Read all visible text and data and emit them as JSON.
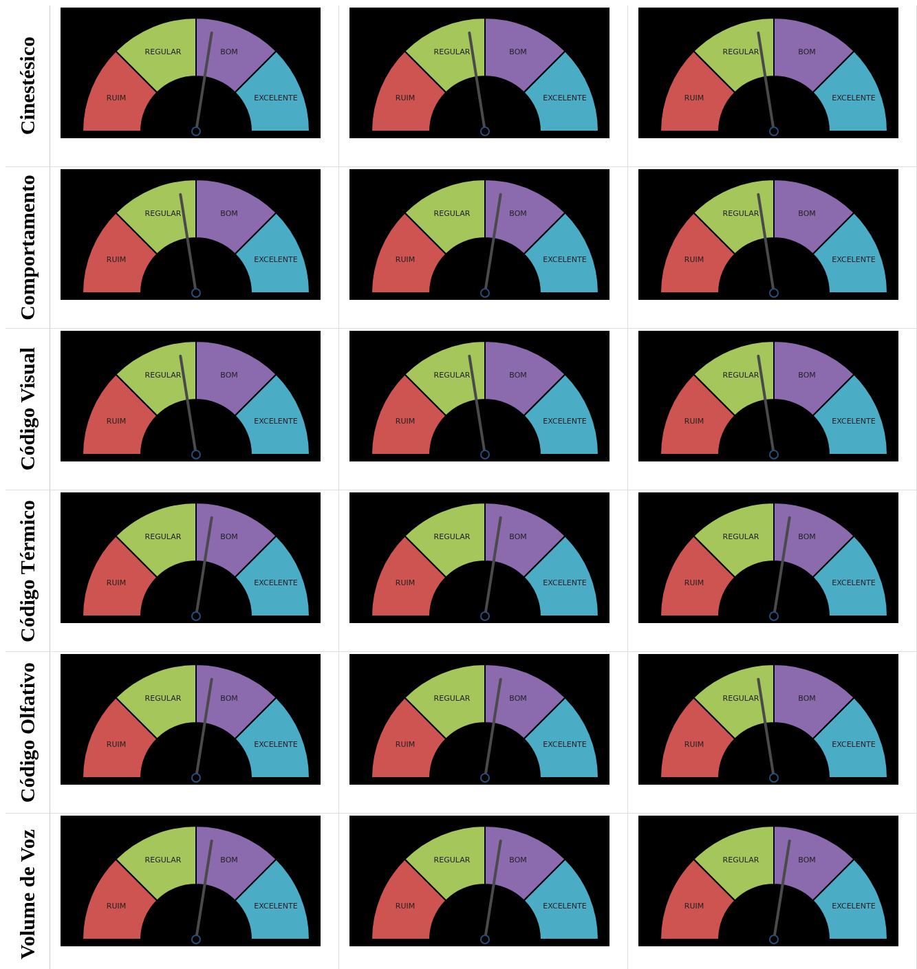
{
  "chart_data": [
    {
      "type": "donut",
      "title": "Cinestésico",
      "categories": [
        "RUIM",
        "REGULAR",
        "BOM",
        "EXCELENTE"
      ],
      "values": [
        25,
        25,
        25,
        25
      ],
      "colors": [
        "#cd5450",
        "#a5c65a",
        "#8b6bae",
        "#4bacc6"
      ],
      "needle": "BOM"
    },
    {
      "type": "donut",
      "categories": [
        "RUIM",
        "REGULAR",
        "BOM",
        "EXCELENTE"
      ],
      "values": [
        25,
        25,
        25,
        25
      ],
      "colors": [
        "#cd5450",
        "#a5c65a",
        "#8b6bae",
        "#4bacc6"
      ],
      "needle": "REGULAR"
    },
    {
      "type": "donut",
      "categories": [
        "RUIM",
        "REGULAR",
        "BOM",
        "EXCELENTE"
      ],
      "values": [
        25,
        25,
        25,
        25
      ],
      "colors": [
        "#cd5450",
        "#a5c65a",
        "#8b6bae",
        "#4bacc6"
      ],
      "needle": "REGULAR"
    },
    {
      "type": "donut",
      "title": "Comportamento",
      "categories": [
        "RUIM",
        "REGULAR",
        "BOM",
        "EXCELENTE"
      ],
      "values": [
        25,
        25,
        25,
        25
      ],
      "colors": [
        "#cd5450",
        "#a5c65a",
        "#8b6bae",
        "#4bacc6"
      ],
      "needle": "REGULAR"
    },
    {
      "type": "donut",
      "categories": [
        "RUIM",
        "REGULAR",
        "BOM",
        "EXCELENTE"
      ],
      "values": [
        25,
        25,
        25,
        25
      ],
      "colors": [
        "#cd5450",
        "#a5c65a",
        "#8b6bae",
        "#4bacc6"
      ],
      "needle": "BOM"
    },
    {
      "type": "donut",
      "categories": [
        "RUIM",
        "REGULAR",
        "BOM",
        "EXCELENTE"
      ],
      "values": [
        25,
        25,
        25,
        25
      ],
      "colors": [
        "#cd5450",
        "#a5c65a",
        "#8b6bae",
        "#4bacc6"
      ],
      "needle": "REGULAR"
    },
    {
      "type": "donut",
      "title": "Código Visual",
      "categories": [
        "RUIM",
        "REGULAR",
        "BOM",
        "EXCELENTE"
      ],
      "values": [
        25,
        25,
        25,
        25
      ],
      "colors": [
        "#cd5450",
        "#a5c65a",
        "#8b6bae",
        "#4bacc6"
      ],
      "needle": "REGULAR"
    },
    {
      "type": "donut",
      "categories": [
        "RUIM",
        "REGULAR",
        "BOM",
        "EXCELENTE"
      ],
      "values": [
        25,
        25,
        25,
        25
      ],
      "colors": [
        "#cd5450",
        "#a5c65a",
        "#8b6bae",
        "#4bacc6"
      ],
      "needle": "REGULAR"
    },
    {
      "type": "donut",
      "categories": [
        "RUIM",
        "REGULAR",
        "BOM",
        "EXCELENTE"
      ],
      "values": [
        25,
        25,
        25,
        25
      ],
      "colors": [
        "#cd5450",
        "#a5c65a",
        "#8b6bae",
        "#4bacc6"
      ],
      "needle": "REGULAR"
    },
    {
      "type": "donut",
      "title": "Código Térmico",
      "categories": [
        "RUIM",
        "REGULAR",
        "BOM",
        "EXCELENTE"
      ],
      "values": [
        25,
        25,
        25,
        25
      ],
      "colors": [
        "#cd5450",
        "#a5c65a",
        "#8b6bae",
        "#4bacc6"
      ],
      "needle": "BOM"
    },
    {
      "type": "donut",
      "categories": [
        "RUIM",
        "REGULAR",
        "BOM",
        "EXCELENTE"
      ],
      "values": [
        25,
        25,
        25,
        25
      ],
      "colors": [
        "#cd5450",
        "#a5c65a",
        "#8b6bae",
        "#4bacc6"
      ],
      "needle": "BOM"
    },
    {
      "type": "donut",
      "categories": [
        "RUIM",
        "REGULAR",
        "BOM",
        "EXCELENTE"
      ],
      "values": [
        25,
        25,
        25,
        25
      ],
      "colors": [
        "#cd5450",
        "#a5c65a",
        "#8b6bae",
        "#4bacc6"
      ],
      "needle": "BOM"
    },
    {
      "type": "donut",
      "title": "Código Olfativo",
      "categories": [
        "RUIM",
        "REGULAR",
        "BOM",
        "EXCELENTE"
      ],
      "values": [
        25,
        25,
        25,
        25
      ],
      "colors": [
        "#cd5450",
        "#a5c65a",
        "#8b6bae",
        "#4bacc6"
      ],
      "needle": "BOM"
    },
    {
      "type": "donut",
      "categories": [
        "RUIM",
        "REGULAR",
        "BOM",
        "EXCELENTE"
      ],
      "values": [
        25,
        25,
        25,
        25
      ],
      "colors": [
        "#cd5450",
        "#a5c65a",
        "#8b6bae",
        "#4bacc6"
      ],
      "needle": "BOM"
    },
    {
      "type": "donut",
      "categories": [
        "RUIM",
        "REGULAR",
        "BOM",
        "EXCELENTE"
      ],
      "values": [
        25,
        25,
        25,
        25
      ],
      "colors": [
        "#cd5450",
        "#a5c65a",
        "#8b6bae",
        "#4bacc6"
      ],
      "needle": "REGULAR"
    },
    {
      "type": "donut",
      "title": "Volume de Voz",
      "categories": [
        "RUIM",
        "REGULAR",
        "BOM",
        "EXCELENTE"
      ],
      "values": [
        25,
        25,
        25,
        25
      ],
      "colors": [
        "#cd5450",
        "#a5c65a",
        "#8b6bae",
        "#4bacc6"
      ],
      "needle": "BOM"
    },
    {
      "type": "donut",
      "categories": [
        "RUIM",
        "REGULAR",
        "BOM",
        "EXCELENTE"
      ],
      "values": [
        25,
        25,
        25,
        25
      ],
      "colors": [
        "#cd5450",
        "#a5c65a",
        "#8b6bae",
        "#4bacc6"
      ],
      "needle": "BOM"
    },
    {
      "type": "donut",
      "categories": [
        "RUIM",
        "REGULAR",
        "BOM",
        "EXCELENTE"
      ],
      "values": [
        25,
        25,
        25,
        25
      ],
      "colors": [
        "#cd5450",
        "#a5c65a",
        "#8b6bae",
        "#4bacc6"
      ],
      "needle": "BOM"
    }
  ]
}
